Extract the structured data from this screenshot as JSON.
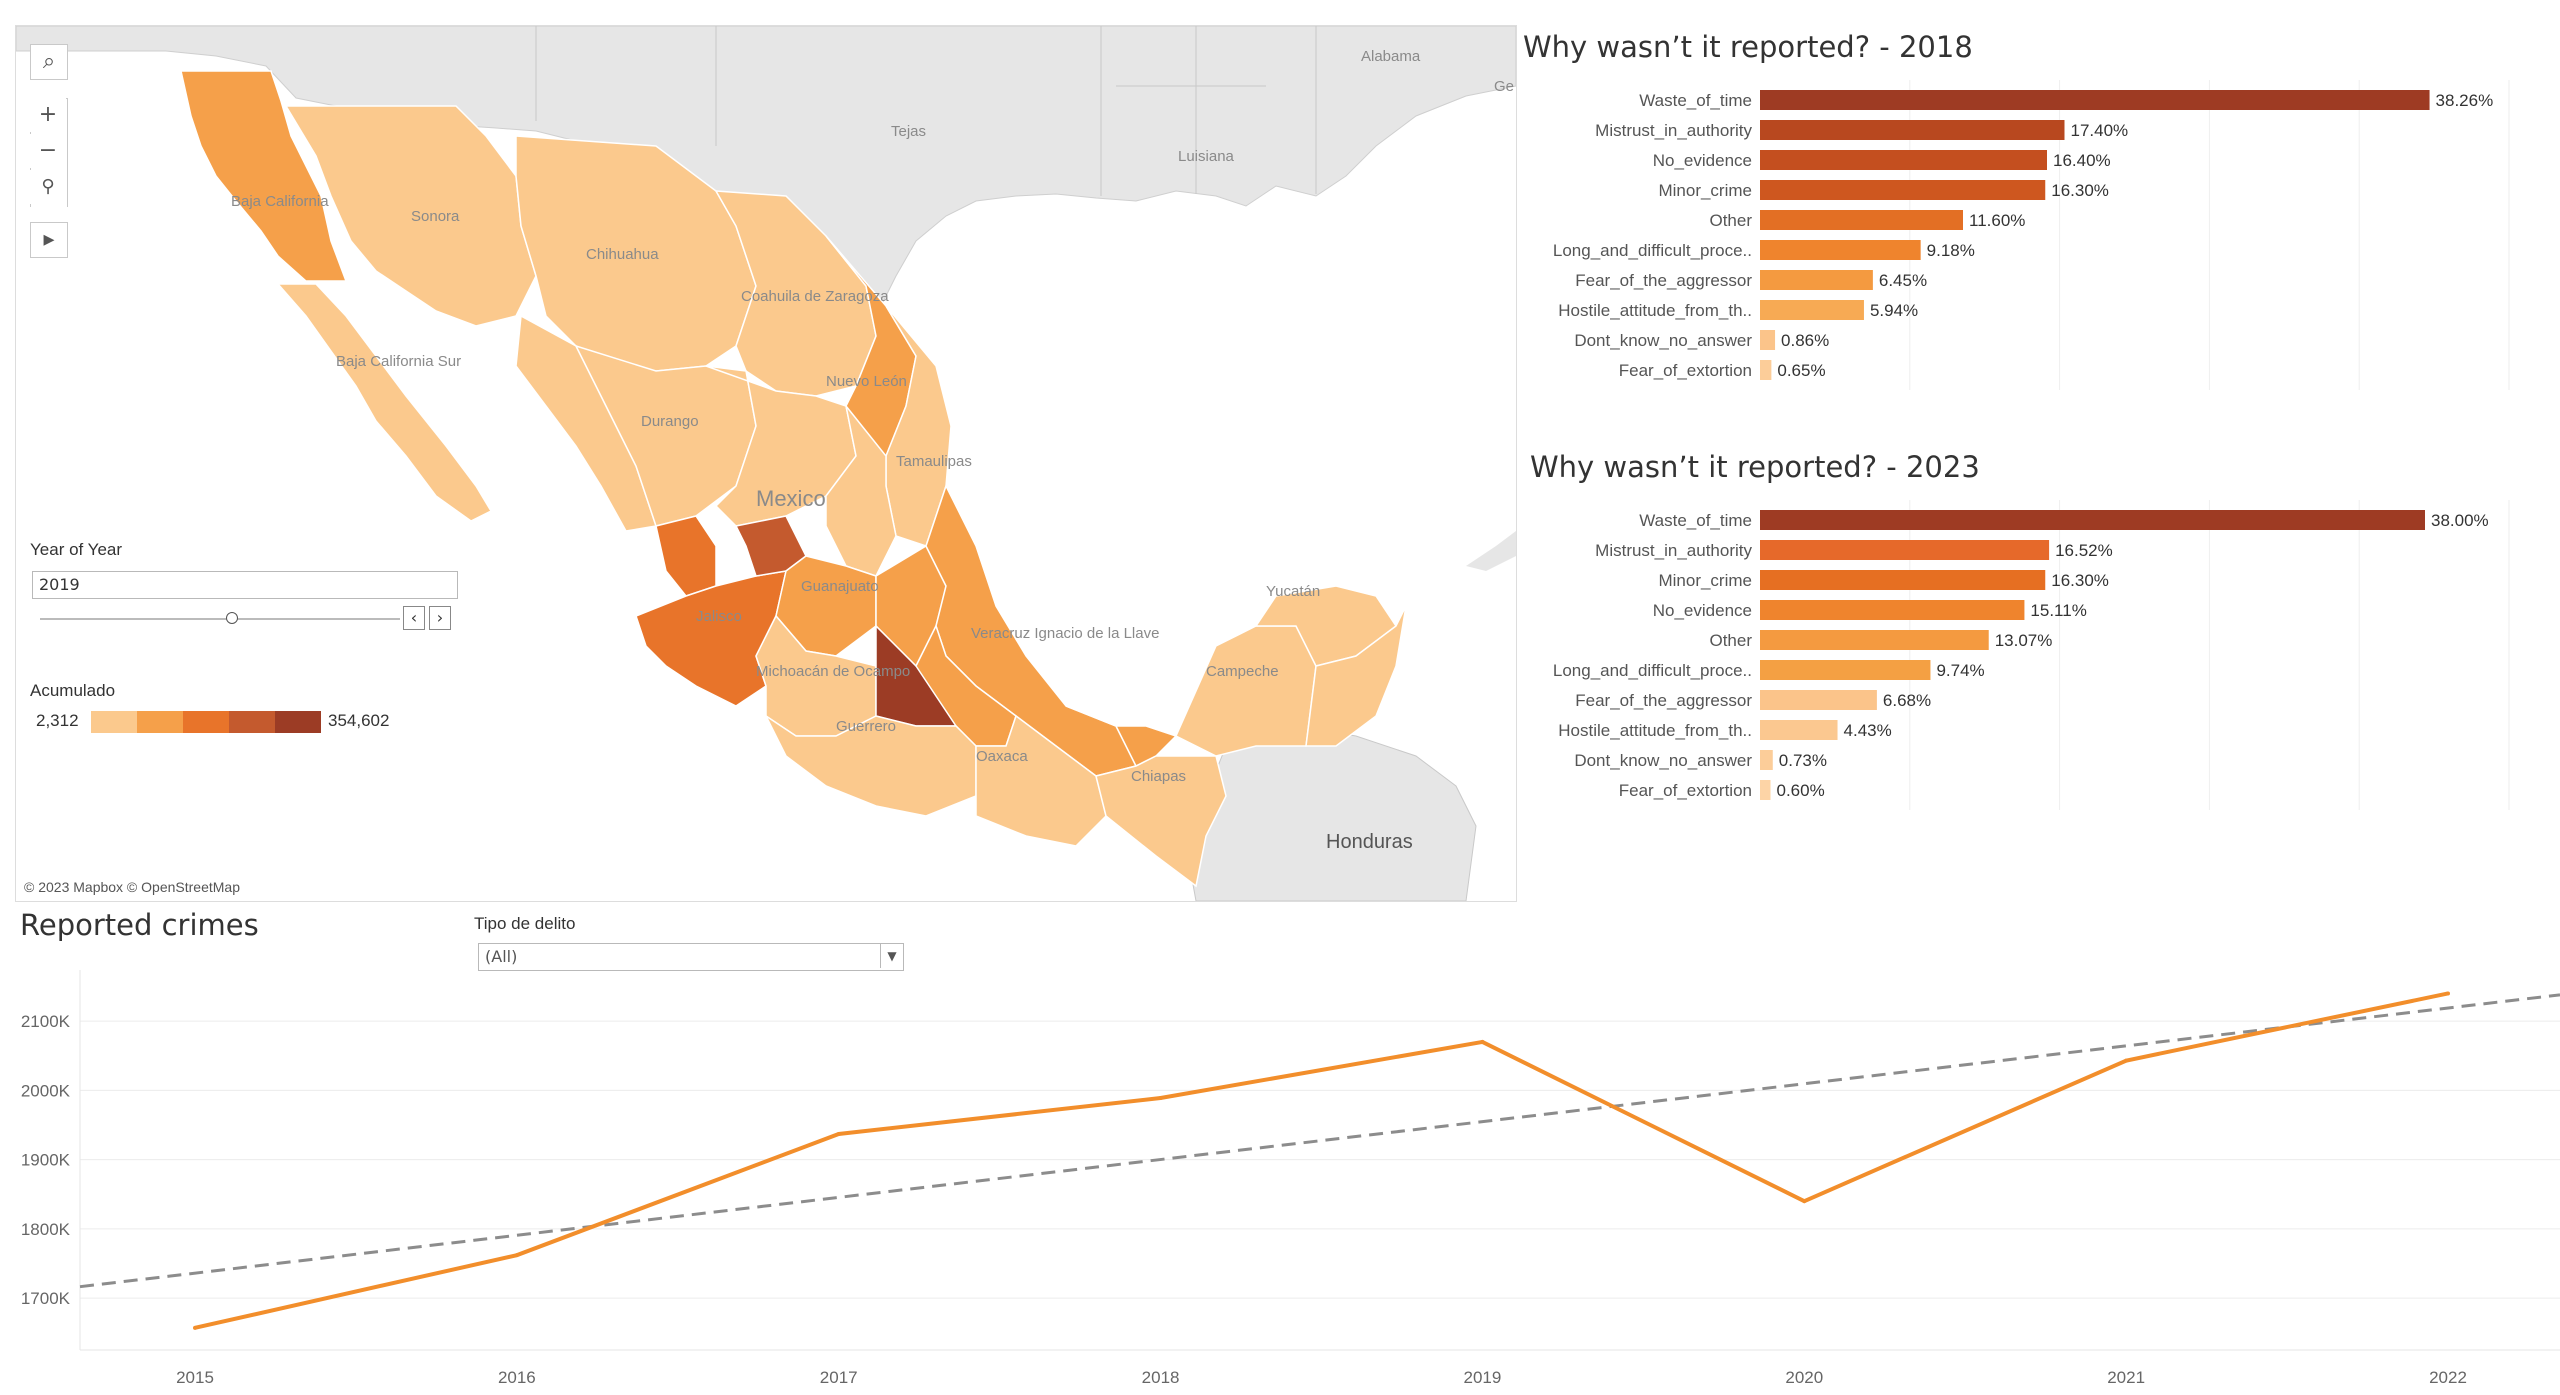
{
  "map": {
    "attribution": "© 2023 Mapbox © OpenStreetMap",
    "place_labels": [
      "Tejas",
      "Luisiana",
      "Alabama",
      "Ge",
      "Baja California",
      "Sonora",
      "Chihuahua",
      "Coahuila de Zaragoza",
      "Nuevo León",
      "Baja California Sur",
      "Durango",
      "Tamaulipas",
      "Mexico",
      "Jalisco",
      "Guanajuato",
      "Michoacán de Ocampo",
      "Veracruz Ignacio de la Llave",
      "Guerrero",
      "Oaxaca",
      "Chiapas",
      "Campeche",
      "Yucatán",
      "Honduras"
    ],
    "tools": {
      "search": "⌕",
      "zoom_in": "+",
      "zoom_out": "−",
      "pin": "⚲",
      "play": "▸"
    },
    "year_filter": {
      "title": "Year of Year",
      "value": "2019"
    },
    "legend": {
      "title": "Acumulado",
      "min": "2,312",
      "max": "354,602",
      "colors": [
        "#fbc98d",
        "#f5a04a",
        "#e8742a",
        "#c45a2e",
        "#9c3c25"
      ]
    }
  },
  "bars_2018": {
    "title": "Why wasn’t it reported? - 2018",
    "chart_data": {
      "type": "bar",
      "categories": [
        "Waste_of_time",
        "Mistrust_in_authority",
        "No_evidence",
        "Minor_crime",
        "Other",
        "Long_and_difficult_proce..",
        "Fear_of_the_aggressor",
        "Hostile_attitude_from_th..",
        "Dont_know_no_answer",
        "Fear_of_extortion"
      ],
      "values": [
        38.26,
        17.4,
        16.4,
        16.3,
        11.6,
        9.18,
        6.45,
        5.94,
        0.86,
        0.65
      ],
      "labels": [
        "38.26%",
        "17.40%",
        "16.40%",
        "16.30%",
        "11.60%",
        "9.18%",
        "6.45%",
        "5.94%",
        "0.86%",
        "0.65%"
      ],
      "colors": [
        "#9e3b23",
        "#b8481f",
        "#c44f1f",
        "#ce571f",
        "#e36f24",
        "#ef842d",
        "#f49a40",
        "#f7aa54",
        "#fbc48a",
        "#fccd99"
      ]
    }
  },
  "bars_2023": {
    "title": "Why wasn’t it reported? - 2023",
    "chart_data": {
      "type": "bar",
      "categories": [
        "Waste_of_time",
        "Mistrust_in_authority",
        "Minor_crime",
        "No_evidence",
        "Other",
        "Long_and_difficult_proce..",
        "Fear_of_the_aggressor",
        "Hostile_attitude_from_th..",
        "Dont_know_no_answer",
        "Fear_of_extortion"
      ],
      "values": [
        38.0,
        16.52,
        16.3,
        15.11,
        13.07,
        9.74,
        6.68,
        4.43,
        0.73,
        0.6
      ],
      "labels": [
        "38.00%",
        "16.52%",
        "16.30%",
        "15.11%",
        "13.07%",
        "9.74%",
        "6.68%",
        "4.43%",
        "0.73%",
        "0.60%"
      ],
      "colors": [
        "#9e3b23",
        "#e6692a",
        "#e66f22",
        "#ef842d",
        "#f49a40",
        "#f4a043",
        "#fbc48a",
        "#fbc890",
        "#fccd99",
        "#fdd4a6"
      ]
    }
  },
  "line": {
    "title": "Reported crimes",
    "filter": {
      "title": "Tipo de delito",
      "value": "(All)",
      "arrow": "▼"
    },
    "chart_data": {
      "type": "line",
      "x": [
        "2015",
        "2016",
        "2017",
        "2018",
        "2019",
        "2020",
        "2021",
        "2022"
      ],
      "series": [
        {
          "values": [
            1657,
            1762,
            1937,
            1989,
            2070,
            1840,
            2043,
            2140
          ],
          "color": "#f28e2b"
        }
      ],
      "trend": {
        "start": 1736,
        "end": 2119,
        "color": "#8c8c8c",
        "style": "dashed"
      },
      "y_ticks": [
        "1700K",
        "1800K",
        "1900K",
        "2000K",
        "2100K"
      ],
      "ylim": [
        1625,
        2145
      ]
    }
  }
}
